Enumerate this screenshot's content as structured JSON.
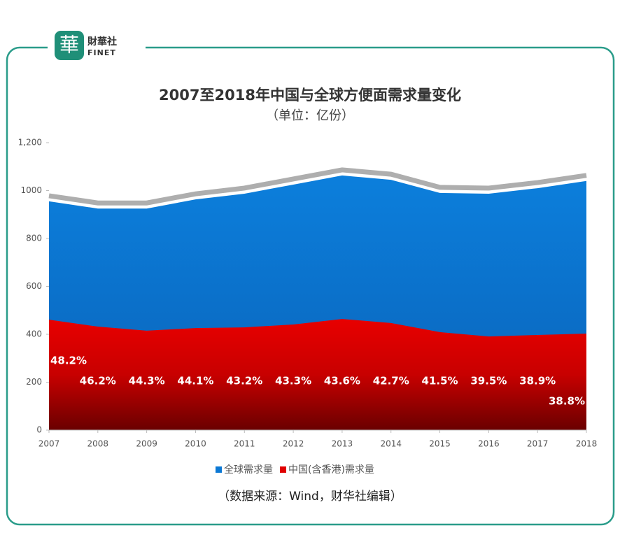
{
  "brand": {
    "mark": "華",
    "name": "財華社",
    "latin": "FINET"
  },
  "chart_data": {
    "type": "area",
    "title": "2007至2018年中国与全球方便面需求量变化",
    "subtitle": "（单位：亿份）",
    "x": [
      2007,
      2008,
      2009,
      2010,
      2011,
      2012,
      2013,
      2014,
      2015,
      2016,
      2017,
      2018
    ],
    "xlim": [
      2007,
      2018
    ],
    "xticks": [
      2007,
      2008,
      2009,
      2010,
      2011,
      2012,
      2013,
      2014,
      2015,
      2016,
      2017,
      2018
    ],
    "ylim": [
      0,
      1200
    ],
    "yticks": [
      0,
      200,
      400,
      600,
      800,
      1000,
      {
        "value": 1200,
        "label": "1,200"
      }
    ],
    "series": [
      {
        "name": "全球需求量",
        "color": "#0b78d4",
        "values": [
          955,
          925,
          925,
          963,
          987,
          1025,
          1063,
          1045,
          990,
          987,
          1010,
          1040
        ]
      },
      {
        "name": "中国(含香港)需求量",
        "color": "#e00000",
        "values": [
          461,
          432,
          415,
          426,
          429,
          441,
          464,
          447,
          409,
          391,
          397,
          403
        ]
      }
    ],
    "annotations": [
      "48.2%",
      "46.2%",
      "44.3%",
      "44.1%",
      "43.2%",
      "43.3%",
      "43.6%",
      "42.7%",
      "41.5%",
      "39.5%",
      "38.9%",
      "38.8%"
    ],
    "legend": "bottom",
    "source": "（数据来源：Wind，财华社编辑）"
  }
}
